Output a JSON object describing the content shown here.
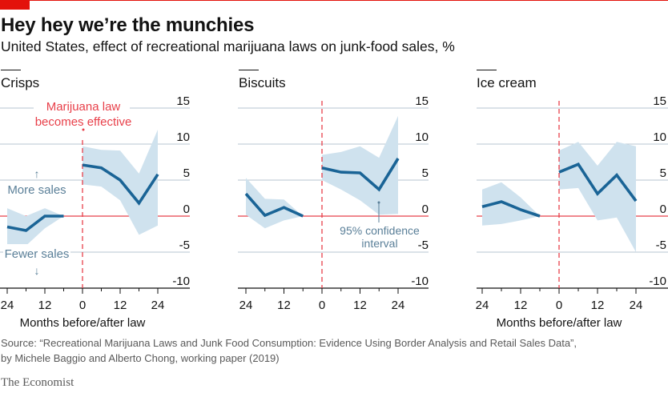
{
  "header": {
    "title": "Hey hey we’re the munchies",
    "subtitle": "United States, effect of recreational marijuana laws on junk-food sales, %"
  },
  "colors": {
    "accent_red": "#e3120b",
    "line": "#1a6496",
    "band": "#cfe2ee",
    "grid": "#b7c6d1",
    "annotation_blue": "#5a7f98",
    "law_red": "#e8404a"
  },
  "annotations": {
    "law_line": [
      "Marijuana law",
      "becomes effective"
    ],
    "more_sales": "More sales",
    "fewer_sales": "Fewer sales",
    "confidence": [
      "95% confidence",
      "interval"
    ],
    "up_arrow": "↑",
    "down_arrow": "↓"
  },
  "chart_data": [
    {
      "type": "line",
      "title": "Crisps",
      "xlabel": "Months before/after law",
      "ylabel": "",
      "x_tick_labels": [
        "24",
        "12",
        "0",
        "12",
        "24"
      ],
      "x_ticks": [
        -24,
        -12,
        0,
        12,
        24
      ],
      "y_ticks": [
        15,
        10,
        5,
        0,
        -5,
        -10
      ],
      "ylim": [
        -10,
        15
      ],
      "xlim": [
        -24,
        24
      ],
      "grid": true,
      "series": [
        {
          "name": "before law",
          "x": [
            -24,
            -18,
            -12,
            -6
          ],
          "values": [
            -1.5,
            -2.0,
            0.0,
            0.0
          ],
          "ci_upper": [
            1.1,
            0.0,
            1.1,
            0.0
          ],
          "ci_lower": [
            -4.4,
            -4.1,
            -1.7,
            0.0
          ]
        },
        {
          "name": "after law",
          "x": [
            0,
            6,
            12,
            18,
            24
          ],
          "values": [
            7.1,
            6.7,
            5.0,
            1.8,
            5.8
          ],
          "ci_upper": [
            9.7,
            9.2,
            9.1,
            5.9,
            12.0
          ],
          "ci_lower": [
            4.4,
            4.1,
            2.2,
            -2.6,
            -1.3
          ]
        }
      ]
    },
    {
      "type": "line",
      "title": "Biscuits",
      "xlabel": "",
      "ylabel": "",
      "x_tick_labels": [
        "24",
        "12",
        "0",
        "12",
        "24"
      ],
      "x_ticks": [
        -24,
        -12,
        0,
        12,
        24
      ],
      "y_ticks": [
        15,
        10,
        5,
        0,
        -5,
        -10
      ],
      "ylim": [
        -10,
        15
      ],
      "xlim": [
        -24,
        24
      ],
      "grid": true,
      "series": [
        {
          "name": "before law",
          "x": [
            -24,
            -18,
            -12,
            -6
          ],
          "values": [
            3.1,
            0.1,
            1.2,
            0.0
          ],
          "ci_upper": [
            5.3,
            2.4,
            2.3,
            0.0
          ],
          "ci_lower": [
            0.2,
            -1.7,
            -0.6,
            0.0
          ]
        },
        {
          "name": "after law",
          "x": [
            0,
            6,
            12,
            18,
            24
          ],
          "values": [
            6.7,
            6.1,
            6.0,
            3.7,
            8.0
          ],
          "ci_upper": [
            8.5,
            8.9,
            9.7,
            8.1,
            13.9
          ],
          "ci_lower": [
            5.0,
            3.7,
            2.2,
            0.2,
            0.3
          ]
        }
      ]
    },
    {
      "type": "line",
      "title": "Ice cream",
      "xlabel": "Months before/after law",
      "ylabel": "",
      "x_tick_labels": [
        "24",
        "12",
        "0",
        "12",
        "24"
      ],
      "x_ticks": [
        -24,
        -12,
        0,
        12,
        24
      ],
      "y_ticks": [
        15,
        10,
        5,
        0,
        -5,
        -10
      ],
      "ylim": [
        -10,
        15
      ],
      "xlim": [
        -24,
        24
      ],
      "grid": true,
      "series": [
        {
          "name": "before law",
          "x": [
            -24,
            -18,
            -12,
            -6
          ],
          "values": [
            1.3,
            2.0,
            0.9,
            0.0
          ],
          "ci_upper": [
            3.7,
            4.7,
            2.6,
            0.0
          ],
          "ci_lower": [
            -1.3,
            -1.1,
            -0.6,
            0.0
          ]
        },
        {
          "name": "after law",
          "x": [
            0,
            6,
            12,
            18,
            24
          ],
          "values": [
            6.1,
            7.2,
            3.1,
            5.7,
            2.1
          ],
          "ci_upper": [
            9.1,
            10.3,
            7.0,
            10.3,
            9.7
          ],
          "ci_lower": [
            3.7,
            3.9,
            -0.6,
            -0.2,
            -5.0
          ]
        }
      ]
    }
  ],
  "footer": {
    "source_line1": "Source: “Recreational Marijuana Laws and Junk Food Consumption: Evidence Using Border Analysis and Retail Sales Data”,",
    "source_line2": "by Michele Baggio and Alberto Chong, working paper (2019)",
    "brand": "The Economist"
  }
}
